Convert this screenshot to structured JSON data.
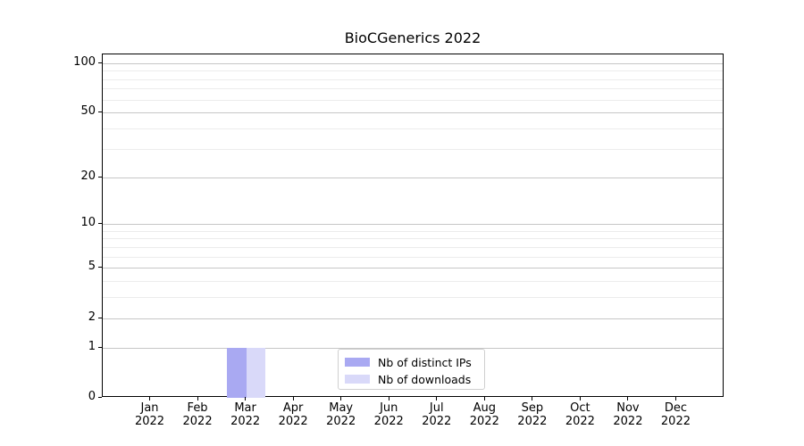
{
  "title": "BioCGenerics 2022",
  "chart_data": {
    "type": "bar",
    "title": "BioCGenerics 2022",
    "categories": [
      "Jan",
      "Feb",
      "Mar",
      "Apr",
      "May",
      "Jun",
      "Jul",
      "Aug",
      "Sep",
      "Oct",
      "Nov",
      "Dec"
    ],
    "year": "2022",
    "series": [
      {
        "name": "Nb of distinct IPs",
        "color": "#a9a9f2",
        "values": [
          0,
          0,
          1,
          0,
          0,
          0,
          0,
          0,
          0,
          0,
          0,
          0
        ]
      },
      {
        "name": "Nb of downloads",
        "color": "#d9d9f9",
        "values": [
          0,
          0,
          1,
          0,
          0,
          0,
          0,
          0,
          0,
          0,
          0,
          0
        ]
      }
    ],
    "xlabel": "",
    "ylabel": "",
    "yscale": "log1p",
    "ylim": [
      0,
      113
    ],
    "yticks": [
      0,
      1,
      2,
      5,
      10,
      20,
      50,
      100
    ],
    "minor_yticks": [
      3,
      4,
      6,
      7,
      8,
      9,
      30,
      40,
      60,
      70,
      80,
      90
    ],
    "grid": "horizontal",
    "legend_position": "bottom-center"
  },
  "colors": {
    "major_grid": "#c6c6c6",
    "minor_grid": "#ececec",
    "spine": "#000000",
    "background": "#ffffff"
  }
}
